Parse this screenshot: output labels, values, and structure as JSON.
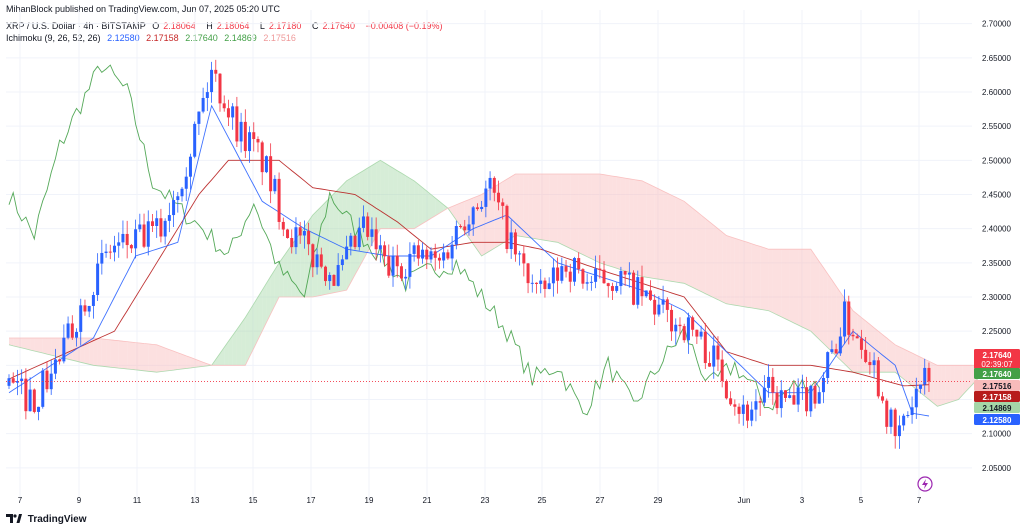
{
  "header": {
    "published": "MihanBlock published on TradingView.com, Jun 07, 2025 05:20 UTC"
  },
  "legend": {
    "symbol": "XRP / U.S. Dollar · 4h · BITSTAMP",
    "o_label": "O",
    "o_value": "2.18064",
    "h_label": "H",
    "h_value": "2.18064",
    "l_label": "L",
    "l_value": "2.17180",
    "c_label": "C",
    "c_value": "2.17640",
    "change": "−0.00408 (−0.19%)",
    "indicator": "Ichimoku (9, 26, 52, 26)",
    "conversion_value": "2.12580",
    "base_value": "2.17158",
    "lagging_value": "2.17640",
    "lead1_value": "2.14869",
    "lead2_value": "2.17516"
  },
  "footer": {
    "brand": "TradingView"
  },
  "colors": {
    "bull": "#2962ff",
    "bear": "#f23645",
    "conversion": "#2962ff",
    "base": "#b71c1c",
    "lagging": "#43a047",
    "cloud_bull": "#a5d6a7",
    "cloud_bear": "#f8bbbb",
    "grid": "#f0f3fa"
  },
  "chart_data": {
    "type": "candlestick",
    "grid": true,
    "y_axis_side": "right",
    "ylim": [
      2.0,
      2.72
    ],
    "y_ticks": [
      "2.05000",
      "2.10000",
      "2.15000",
      "2.20000",
      "2.25000",
      "2.30000",
      "2.35000",
      "2.40000",
      "2.45000",
      "2.50000",
      "2.55000",
      "2.60000",
      "2.65000",
      "2.70000"
    ],
    "x_ticks": [
      "7",
      "9",
      "11",
      "13",
      "15",
      "17",
      "19",
      "21",
      "23",
      "25",
      "27",
      "29",
      "Jun",
      "3",
      "5",
      "7"
    ],
    "current_price": 2.1764,
    "countdown": "02:39:07",
    "price_tags": [
      {
        "value": "2.17640",
        "color": "#f23645",
        "fill": "#f23645",
        "text_color": "#ffffff"
      },
      {
        "value": "2.17640",
        "color": "#43a047",
        "fill": "#43a047",
        "text_color": "#ffffff"
      },
      {
        "value": "2.17516",
        "color": "#ef9a9a",
        "fill": "#f8bbbb",
        "text_color": "#131722"
      },
      {
        "value": "2.17158",
        "color": "#b71c1c",
        "fill": "#b71c1c",
        "text_color": "#ffffff"
      },
      {
        "value": "2.14869",
        "color": "#a5d6a7",
        "fill": "#a5d6a7",
        "text_color": "#131722"
      },
      {
        "value": "2.12580",
        "color": "#2962ff",
        "fill": "#2962ff",
        "text_color": "#ffffff"
      }
    ],
    "close_anchors": [
      [
        0,
        2.17
      ],
      [
        6,
        2.15
      ],
      [
        12,
        2.21
      ],
      [
        18,
        2.3
      ],
      [
        24,
        2.37
      ],
      [
        30,
        2.38
      ],
      [
        36,
        2.4
      ],
      [
        42,
        2.5
      ],
      [
        48,
        2.63
      ],
      [
        54,
        2.55
      ],
      [
        60,
        2.5
      ],
      [
        66,
        2.4
      ],
      [
        72,
        2.36
      ],
      [
        78,
        2.33
      ],
      [
        84,
        2.4
      ],
      [
        90,
        2.34
      ],
      [
        96,
        2.36
      ],
      [
        102,
        2.35
      ],
      [
        108,
        2.42
      ],
      [
        114,
        2.46
      ],
      [
        120,
        2.36
      ],
      [
        126,
        2.3
      ],
      [
        132,
        2.35
      ],
      [
        138,
        2.32
      ],
      [
        144,
        2.33
      ],
      [
        150,
        2.3
      ],
      [
        156,
        2.27
      ],
      [
        162,
        2.25
      ],
      [
        168,
        2.2
      ],
      [
        174,
        2.13
      ],
      [
        180,
        2.16
      ],
      [
        186,
        2.14
      ],
      [
        192,
        2.17
      ],
      [
        198,
        2.27
      ],
      [
        204,
        2.22
      ],
      [
        210,
        2.09
      ],
      [
        216,
        2.17
      ],
      [
        218,
        2.1764
      ]
    ],
    "candle_count": 219,
    "conversion_anchors": [
      [
        0,
        2.16
      ],
      [
        20,
        2.24
      ],
      [
        30,
        2.36
      ],
      [
        40,
        2.38
      ],
      [
        48,
        2.58
      ],
      [
        60,
        2.44
      ],
      [
        70,
        2.4
      ],
      [
        80,
        2.37
      ],
      [
        90,
        2.36
      ],
      [
        100,
        2.36
      ],
      [
        110,
        2.4
      ],
      [
        118,
        2.42
      ],
      [
        130,
        2.35
      ],
      [
        140,
        2.33
      ],
      [
        150,
        2.31
      ],
      [
        160,
        2.28
      ],
      [
        170,
        2.22
      ],
      [
        180,
        2.16
      ],
      [
        190,
        2.16
      ],
      [
        200,
        2.25
      ],
      [
        210,
        2.2
      ],
      [
        214,
        2.13
      ],
      [
        218,
        2.1258
      ]
    ],
    "base_anchors": [
      [
        0,
        2.18
      ],
      [
        25,
        2.25
      ],
      [
        45,
        2.45
      ],
      [
        52,
        2.5
      ],
      [
        64,
        2.5
      ],
      [
        72,
        2.46
      ],
      [
        82,
        2.45
      ],
      [
        92,
        2.41
      ],
      [
        100,
        2.37
      ],
      [
        110,
        2.38
      ],
      [
        118,
        2.38
      ],
      [
        126,
        2.37
      ],
      [
        140,
        2.34
      ],
      [
        150,
        2.32
      ],
      [
        160,
        2.3
      ],
      [
        170,
        2.22
      ],
      [
        180,
        2.2
      ],
      [
        190,
        2.2
      ],
      [
        200,
        2.19
      ],
      [
        212,
        2.17
      ],
      [
        218,
        2.1716
      ]
    ],
    "lagging_anchors": [
      [
        0,
        2.45
      ],
      [
        6,
        2.39
      ],
      [
        12,
        2.52
      ],
      [
        16,
        2.57
      ],
      [
        22,
        2.64
      ],
      [
        28,
        2.6
      ],
      [
        34,
        2.47
      ],
      [
        40,
        2.43
      ],
      [
        46,
        2.4
      ],
      [
        52,
        2.36
      ],
      [
        58,
        2.44
      ],
      [
        64,
        2.34
      ],
      [
        70,
        2.3
      ],
      [
        76,
        2.45
      ],
      [
        82,
        2.4
      ],
      [
        88,
        2.36
      ],
      [
        94,
        2.32
      ],
      [
        100,
        2.34
      ],
      [
        106,
        2.35
      ],
      [
        112,
        2.3
      ],
      [
        118,
        2.25
      ],
      [
        124,
        2.18
      ],
      [
        130,
        2.2
      ],
      [
        136,
        2.13
      ],
      [
        142,
        2.2
      ],
      [
        148,
        2.14
      ],
      [
        154,
        2.2
      ],
      [
        160,
        2.25
      ],
      [
        166,
        2.17
      ],
      [
        172,
        2.2
      ],
      [
        180,
        2.14
      ],
      [
        186,
        2.17
      ],
      [
        192,
        2.1764
      ]
    ],
    "lead1_anchors": [
      [
        0,
        2.23
      ],
      [
        20,
        2.2
      ],
      [
        35,
        2.19
      ],
      [
        48,
        2.2
      ],
      [
        56,
        2.27
      ],
      [
        64,
        2.35
      ],
      [
        72,
        2.42
      ],
      [
        80,
        2.47
      ],
      [
        88,
        2.5
      ],
      [
        96,
        2.47
      ],
      [
        104,
        2.43
      ],
      [
        112,
        2.36
      ],
      [
        120,
        2.39
      ],
      [
        130,
        2.38
      ],
      [
        140,
        2.35
      ],
      [
        150,
        2.33
      ],
      [
        160,
        2.32
      ],
      [
        170,
        2.29
      ],
      [
        180,
        2.28
      ],
      [
        190,
        2.25
      ],
      [
        200,
        2.19
      ],
      [
        210,
        2.19
      ],
      [
        220,
        2.14
      ],
      [
        225,
        2.15
      ],
      [
        234,
        2.21
      ]
    ],
    "lead2_anchors": [
      [
        0,
        2.24
      ],
      [
        20,
        2.24
      ],
      [
        35,
        2.23
      ],
      [
        48,
        2.2
      ],
      [
        56,
        2.2
      ],
      [
        64,
        2.3
      ],
      [
        72,
        2.3
      ],
      [
        80,
        2.31
      ],
      [
        88,
        2.4
      ],
      [
        96,
        2.4
      ],
      [
        104,
        2.43
      ],
      [
        112,
        2.45
      ],
      [
        120,
        2.48
      ],
      [
        130,
        2.48
      ],
      [
        140,
        2.48
      ],
      [
        150,
        2.47
      ],
      [
        160,
        2.44
      ],
      [
        170,
        2.39
      ],
      [
        180,
        2.37
      ],
      [
        190,
        2.37
      ],
      [
        200,
        2.28
      ],
      [
        210,
        2.23
      ],
      [
        220,
        2.2
      ],
      [
        225,
        2.2
      ],
      [
        234,
        2.2
      ]
    ]
  }
}
